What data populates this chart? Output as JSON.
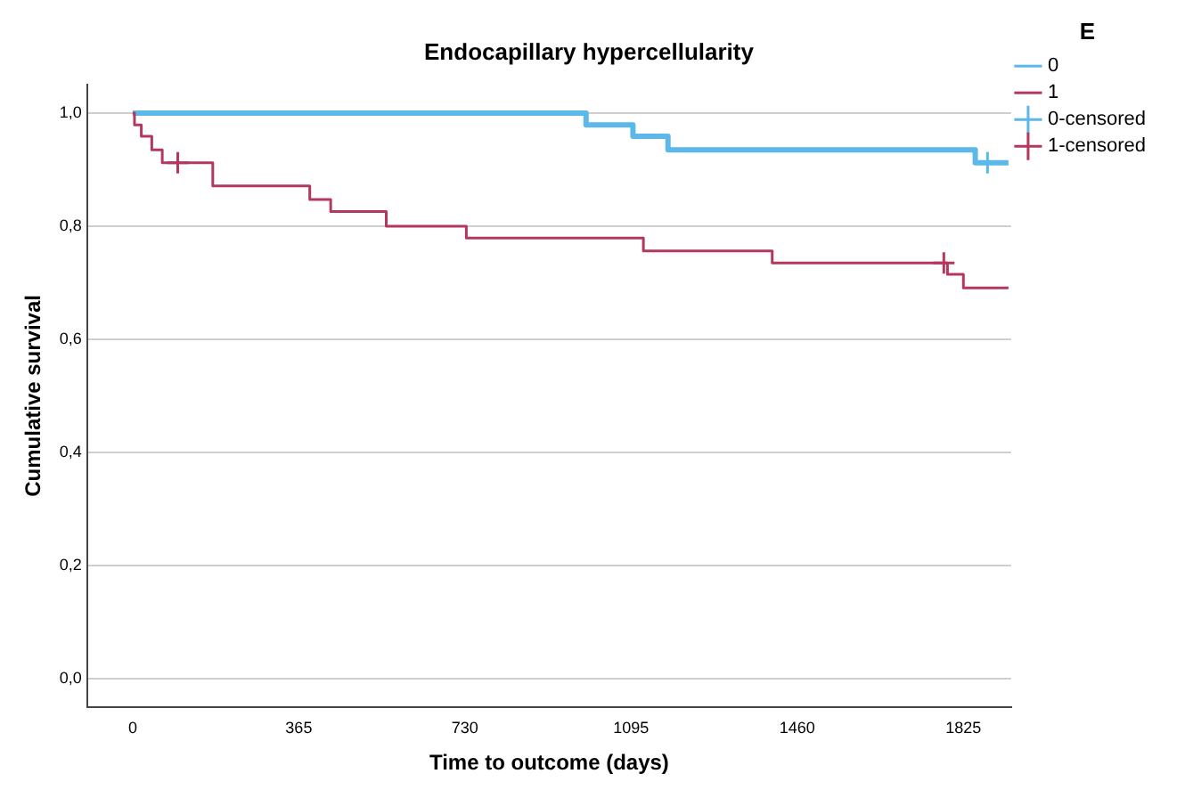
{
  "chart_data": {
    "type": "step",
    "title": "Endocapillary hypercellularity",
    "xlabel": "Time to outcome (days)",
    "ylabel": "Cumulative survival",
    "legend_title": "E",
    "legend": "right",
    "grid": "y",
    "xlim": [
      -100,
      1930
    ],
    "xticks": [
      0,
      365,
      730,
      1095,
      1460,
      1825
    ],
    "ylim": [
      -0.05,
      1.05
    ],
    "yticks": [
      {
        "value": 0,
        "label": "0,0"
      },
      {
        "value": 0.2,
        "label": "0,2"
      },
      {
        "value": 0.4,
        "label": "0,4"
      },
      {
        "value": 0.6,
        "label": "0,6"
      },
      {
        "value": 0.8,
        "label": "0,8"
      },
      {
        "value": 1,
        "label": "1,0"
      }
    ],
    "series": [
      {
        "name": "0",
        "color": "#5cb8e8",
        "marker": "none",
        "x": [
          0,
          996,
          1099,
          1176,
          1851,
          1924
        ],
        "values": [
          1,
          0.979,
          0.959,
          0.935,
          0.912,
          0.912
        ]
      },
      {
        "name": "1",
        "color": "#b4385e",
        "marker": "none",
        "x": [
          0,
          4,
          19,
          42,
          65,
          176,
          389,
          435,
          557,
          733,
          1122,
          1405,
          1790,
          1825,
          1924
        ],
        "values": [
          1,
          0.979,
          0.959,
          0.935,
          0.912,
          0.871,
          0.847,
          0.826,
          0.8,
          0.779,
          0.756,
          0.735,
          0.715,
          0.691,
          0.691
        ]
      },
      {
        "name": "0-censored",
        "type": "scatter",
        "color": "#5cb8e8",
        "marker": "cross",
        "x": [
          1878
        ],
        "values": [
          0.912
        ]
      },
      {
        "name": "1-censored",
        "type": "scatter",
        "color": "#b4385e",
        "marker": "cross",
        "x": [
          99,
          1782
        ],
        "values": [
          0.912,
          0.735
        ]
      }
    ]
  }
}
